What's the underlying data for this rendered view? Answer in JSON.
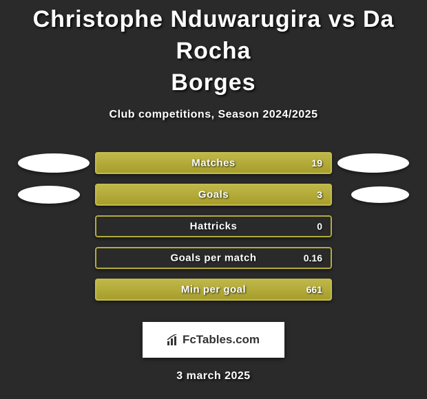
{
  "title_line1": "Christophe Nduwarugira vs Da Rocha",
  "title_line2": "Borges",
  "subtitle": "Club competitions, Season 2024/2025",
  "colors": {
    "background": "#2a2a2a",
    "bar_gradient_top": "#c0b94a",
    "bar_gradient_bottom": "#a59c2a",
    "bar_border": "#b4ac3c",
    "text": "#ffffff",
    "ellipse": "#ffffff"
  },
  "typography": {
    "title_fontsize": 34,
    "subtitle_fontsize": 16,
    "bar_label_fontsize": 15,
    "bar_value_fontsize": 14,
    "date_fontsize": 16,
    "font_family": "Arial Black"
  },
  "stats": [
    {
      "label": "Matches",
      "value": "19",
      "fill_pct": 100,
      "left_ellipse": true,
      "right_ellipse": true,
      "left_ellipse_class": "",
      "right_ellipse_class": ""
    },
    {
      "label": "Goals",
      "value": "3",
      "fill_pct": 100,
      "left_ellipse": true,
      "right_ellipse": true,
      "left_ellipse_class": "offset-left",
      "right_ellipse_class": "offset-right"
    },
    {
      "label": "Hattricks",
      "value": "0",
      "fill_pct": 0,
      "left_ellipse": false,
      "right_ellipse": false,
      "left_ellipse_class": "",
      "right_ellipse_class": ""
    },
    {
      "label": "Goals per match",
      "value": "0.16",
      "fill_pct": 0,
      "left_ellipse": false,
      "right_ellipse": false,
      "left_ellipse_class": "",
      "right_ellipse_class": ""
    },
    {
      "label": "Min per goal",
      "value": "661",
      "fill_pct": 100,
      "left_ellipse": false,
      "right_ellipse": false,
      "left_ellipse_class": "",
      "right_ellipse_class": ""
    }
  ],
  "logo_text": "FcTables.com",
  "date": "3 march 2025"
}
